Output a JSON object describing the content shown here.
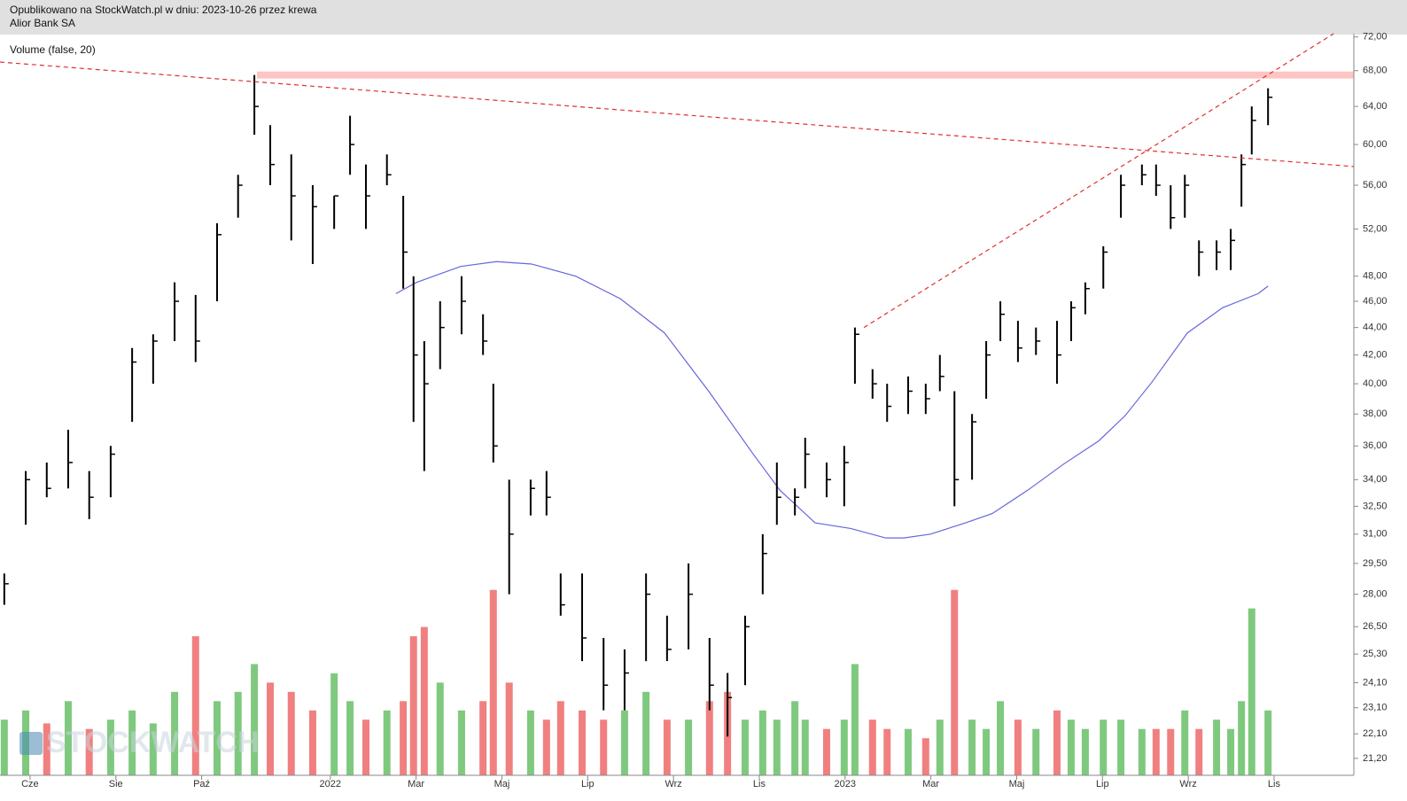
{
  "header": {
    "published": "Opublikowano na StockWatch.pl w dniu: 2023-10-26 przez krewa",
    "company": "Alior Bank SA"
  },
  "chart_data": {
    "type": "ohlc",
    "indicator_label": "Volume (false, 20)",
    "watermark": "STOCKWATCH",
    "log_y": true,
    "bar_color": "#000000",
    "xlim": [
      -0.7,
      30.86
    ],
    "xticks": [
      {
        "value": 0,
        "label": "Cze"
      },
      {
        "value": 2,
        "label": "Sie"
      },
      {
        "value": 4,
        "label": "Paź"
      },
      {
        "value": 7,
        "label": "2022"
      },
      {
        "value": 9,
        "label": "Mar"
      },
      {
        "value": 11,
        "label": "Maj"
      },
      {
        "value": 13,
        "label": "Lip"
      },
      {
        "value": 15,
        "label": "Wrz"
      },
      {
        "value": 17,
        "label": "Lis"
      },
      {
        "value": 19,
        "label": "2023"
      },
      {
        "value": 21,
        "label": "Mar"
      },
      {
        "value": 23,
        "label": "Maj"
      },
      {
        "value": 25,
        "label": "Lip"
      },
      {
        "value": 27,
        "label": "Wrz"
      },
      {
        "value": 29,
        "label": "Lis"
      }
    ],
    "ylim": [
      20.6,
      72.4
    ],
    "yticks": [
      {
        "value": 72,
        "label": "72,00"
      },
      {
        "value": 68,
        "label": "68,00"
      },
      {
        "value": 64,
        "label": "64,00"
      },
      {
        "value": 60,
        "label": "60,00"
      },
      {
        "value": 56,
        "label": "56,00"
      },
      {
        "value": 52,
        "label": "52,00"
      },
      {
        "value": 48,
        "label": "48,00"
      },
      {
        "value": 46,
        "label": "46,00"
      },
      {
        "value": 44,
        "label": "44,00"
      },
      {
        "value": 42,
        "label": "42,00"
      },
      {
        "value": 40,
        "label": "40,00"
      },
      {
        "value": 38,
        "label": "38,00"
      },
      {
        "value": 36,
        "label": "36,00"
      },
      {
        "value": 34,
        "label": "34,00"
      },
      {
        "value": 32.5,
        "label": "32,50"
      },
      {
        "value": 31,
        "label": "31,00"
      },
      {
        "value": 29.5,
        "label": "29,50"
      },
      {
        "value": 28,
        "label": "28,00"
      },
      {
        "value": 26.5,
        "label": "26,50"
      },
      {
        "value": 25.3,
        "label": "25,30"
      },
      {
        "value": 24.1,
        "label": "24,10"
      },
      {
        "value": 23.1,
        "label": "23,10"
      },
      {
        "value": 22.1,
        "label": "22,10"
      },
      {
        "value": 21.2,
        "label": "21,20"
      }
    ],
    "y2lim": [
      0,
      400
    ],
    "x": [
      -0.6,
      -0.1,
      0.39,
      0.89,
      1.38,
      1.88,
      2.38,
      2.87,
      3.37,
      3.86,
      4.36,
      4.85,
      5.23,
      5.6,
      6.09,
      6.59,
      7.09,
      7.46,
      7.83,
      8.32,
      8.7,
      8.94,
      9.19,
      9.56,
      10.06,
      10.56,
      10.8,
      11.17,
      11.67,
      12.04,
      12.37,
      12.87,
      13.37,
      13.86,
      14.36,
      14.85,
      15.35,
      15.84,
      16.26,
      16.67,
      17.08,
      17.41,
      17.83,
      18.07,
      18.57,
      18.98,
      19.23,
      19.64,
      19.98,
      20.47,
      20.88,
      21.21,
      21.55,
      21.96,
      22.29,
      22.62,
      23.03,
      23.45,
      23.94,
      24.27,
      24.6,
      25.02,
      25.43,
      25.92,
      26.25,
      26.59,
      26.92,
      27.25,
      27.66,
      27.99,
      28.24,
      28.48,
      28.86
    ],
    "high": [
      29,
      34.5,
      35,
      37,
      34.5,
      36,
      42.5,
      43.5,
      47.5,
      46.5,
      52.5,
      57,
      67.5,
      62,
      59,
      56,
      55,
      63,
      58,
      59,
      55,
      48,
      43,
      46,
      48,
      45,
      40,
      34,
      34,
      34.5,
      29,
      29,
      26,
      25.5,
      29,
      27,
      29.5,
      26,
      24.5,
      27,
      31,
      35,
      33.5,
      36.5,
      35,
      36,
      44,
      41,
      40,
      40.5,
      40,
      42,
      39.5,
      38,
      43,
      46,
      44.5,
      44,
      44.5,
      46,
      47.5,
      50.5,
      57,
      58,
      58,
      56,
      57,
      51,
      51,
      52,
      59,
      64,
      66
    ],
    "low": [
      27.5,
      31.5,
      33,
      33.5,
      31.8,
      33,
      37.5,
      40,
      43,
      41.5,
      46,
      53,
      61,
      56,
      51,
      49,
      52,
      57,
      52,
      56,
      47,
      37.5,
      34.5,
      41,
      43.5,
      42,
      35,
      28,
      32,
      32,
      27,
      25,
      23,
      23,
      25,
      25,
      25.5,
      23,
      22,
      24,
      28,
      31.5,
      32,
      33.5,
      33,
      32.5,
      40,
      39,
      37.5,
      38,
      38,
      39.5,
      32.5,
      34,
      39,
      43,
      41.5,
      42,
      40,
      43,
      45,
      47,
      53,
      56,
      55,
      52,
      53,
      48,
      48.5,
      48.5,
      54,
      59,
      62
    ],
    "close": [
      28.5,
      34,
      33.5,
      35,
      33,
      35.5,
      41.5,
      43,
      46,
      43,
      51.5,
      56,
      64,
      58,
      55,
      54,
      55,
      60,
      55,
      57,
      50,
      42,
      40,
      44,
      46,
      43,
      36,
      31,
      33.5,
      33,
      27.5,
      26,
      24,
      24.5,
      28,
      25.5,
      28,
      24,
      23.5,
      26.5,
      30,
      33,
      33,
      35.5,
      34,
      35,
      43.5,
      40,
      38.5,
      39.5,
      39,
      40.5,
      34,
      37.5,
      42,
      45,
      42.5,
      43,
      42,
      45.5,
      47,
      50,
      56,
      57,
      56,
      53,
      56,
      50,
      50,
      51,
      58,
      62.5,
      65
    ],
    "volume": {
      "axis": "y2",
      "up_color": "#7fc97f",
      "down_color": "#f08080",
      "values": [
        30,
        35,
        28,
        40,
        25,
        30,
        35,
        28,
        45,
        75,
        40,
        45,
        60,
        50,
        45,
        35,
        55,
        40,
        30,
        35,
        40,
        75,
        80,
        50,
        35,
        40,
        100,
        50,
        35,
        30,
        40,
        35,
        30,
        35,
        45,
        30,
        30,
        40,
        45,
        30,
        35,
        30,
        40,
        30,
        25,
        30,
        60,
        30,
        25,
        25,
        20,
        30,
        100,
        30,
        25,
        40,
        30,
        25,
        35,
        30,
        25,
        30,
        30,
        25,
        25,
        25,
        35,
        25,
        30,
        25,
        40,
        90,
        35
      ]
    },
    "moving_average": {
      "color": "#6666dd",
      "x": [
        8.53,
        9.01,
        10.04,
        10.87,
        11.69,
        12.72,
        13.76,
        14.79,
        15.82,
        16.86,
        17.48,
        18.3,
        19.13,
        19.95,
        20.37,
        20.99,
        21.81,
        22.43,
        23.26,
        24.09,
        24.91,
        25.53,
        26.15,
        26.98,
        27.8,
        28.63,
        28.86
      ],
      "values": [
        46.6,
        47.5,
        48.8,
        49.2,
        49.0,
        48.0,
        46.2,
        43.6,
        39.5,
        35.5,
        33.4,
        31.6,
        31.3,
        30.8,
        30.8,
        31.0,
        31.6,
        32.1,
        33.4,
        34.9,
        36.3,
        37.9,
        40.1,
        43.6,
        45.5,
        46.6,
        47.2
      ]
    },
    "trendlines": [
      {
        "color": "#e03030",
        "x": [
          -0.7,
          30.86
        ],
        "y": [
          69.0,
          57.8
        ]
      },
      {
        "color": "#e03030",
        "x": [
          19.44,
          30.39
        ],
        "y": [
          44.0,
          72.4
        ]
      }
    ],
    "zone": {
      "color": "#ffc4c4",
      "x0": 5.29,
      "ylim": [
        67.1,
        67.9
      ]
    }
  }
}
